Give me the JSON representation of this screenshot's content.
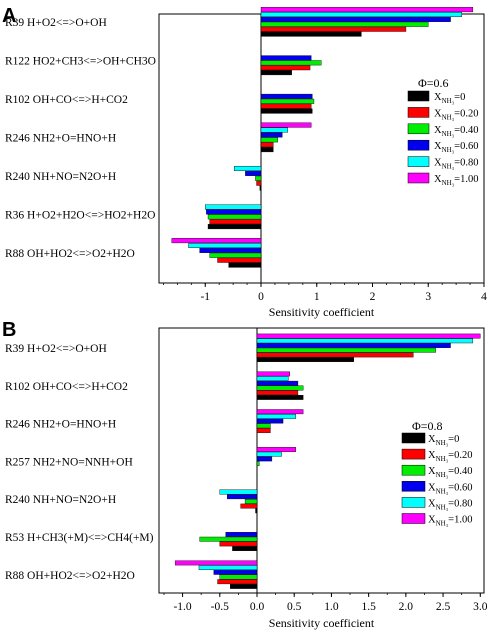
{
  "chart_data": [
    {
      "panel_label": "A",
      "type": "bar",
      "orientation": "horizontal",
      "categories": [
        "R39 H+O2<=>O+OH",
        "R122 HO2+CH3<=>OH+CH3O",
        "R102 OH+CO<=>H+CO2",
        "R246 NH2+O=HNO+H",
        "R240 NH+NO=N2O+H",
        "R36 H+O2+H2O<=>HO2+H2O",
        "R88 OH+HO2<=>O2+H2O"
      ],
      "series": [
        {
          "label": "0",
          "color": "#000000",
          "values": [
            1.8,
            0.55,
            0.92,
            0.22,
            -0.02,
            -0.95,
            -0.58
          ]
        },
        {
          "label": "0.20",
          "color": "#ff0000",
          "values": [
            2.6,
            0.88,
            0.9,
            0.22,
            -0.08,
            -0.92,
            -0.78
          ]
        },
        {
          "label": "0.40",
          "color": "#00ee00",
          "values": [
            3.0,
            1.08,
            0.95,
            0.3,
            -0.1,
            -0.95,
            -0.92
          ]
        },
        {
          "label": "0.60",
          "color": "#0000ee",
          "values": [
            3.4,
            0.9,
            0.92,
            0.38,
            -0.28,
            -0.98,
            -1.1
          ]
        },
        {
          "label": "0.80",
          "color": "#00ffff",
          "values": [
            3.6,
            0.0,
            0.0,
            0.48,
            -0.48,
            -1.0,
            -1.3
          ]
        },
        {
          "label": "1.00",
          "color": "#ff00ff",
          "values": [
            3.8,
            0.0,
            0.0,
            0.9,
            0.0,
            0.0,
            -1.6
          ]
        }
      ],
      "xlabel": "Sensitivity coefficient",
      "xlim": [
        -1.8,
        4.0
      ],
      "xticks": [
        -1,
        0,
        1,
        2,
        3,
        4
      ],
      "legend_title": "Φ=0.6",
      "legend_prefix": "X",
      "legend_sub": "NH₃",
      "legend_position": "right"
    },
    {
      "panel_label": "B",
      "type": "bar",
      "orientation": "horizontal",
      "categories": [
        "R39 H+O2<=>O+OH",
        "R102 OH+CO<=>H+CO2",
        "R246 NH2+O=HNO+H",
        "R257 NH2+NO=NNH+OH",
        "R240 NH+NO=N2O+H",
        "R53 H+CH3(+M)<=>CH4(+M)",
        "R88 OH+HO2<=>O2+H2O"
      ],
      "series": [
        {
          "label": "0",
          "color": "#000000",
          "values": [
            1.3,
            0.62,
            0.0,
            0.0,
            -0.02,
            -0.33,
            -0.36
          ]
        },
        {
          "label": "0.20",
          "color": "#ff0000",
          "values": [
            2.1,
            0.55,
            0.18,
            0.0,
            -0.22,
            -0.5,
            -0.53
          ]
        },
        {
          "label": "0.40",
          "color": "#00ee00",
          "values": [
            2.4,
            0.62,
            0.18,
            0.03,
            -0.16,
            -0.77,
            -0.5
          ]
        },
        {
          "label": "0.60",
          "color": "#0000ee",
          "values": [
            2.6,
            0.55,
            0.35,
            0.2,
            -0.4,
            -0.42,
            -0.58
          ]
        },
        {
          "label": "0.80",
          "color": "#00ffff",
          "values": [
            2.9,
            0.42,
            0.52,
            0.33,
            -0.5,
            0.0,
            -0.78
          ]
        },
        {
          "label": "1.00",
          "color": "#ff00ff",
          "values": [
            3.0,
            0.44,
            0.62,
            0.52,
            0.0,
            0.0,
            -1.1
          ]
        }
      ],
      "xlabel": "Sensitivity coefficient",
      "xlim": [
        -1.25,
        3.05
      ],
      "xticks": [
        -1.0,
        -0.5,
        0.0,
        0.5,
        1.0,
        1.5,
        2.0,
        2.5,
        3.0
      ],
      "xtick_labels": [
        "-1.0",
        "-0.5",
        "0.0",
        "0.5",
        "1.0",
        "1.5",
        "2.0",
        "2.5",
        "3.0"
      ],
      "legend_title": "Φ=0.8",
      "legend_prefix": "X",
      "legend_sub": "NH₃",
      "legend_position": "right"
    }
  ]
}
